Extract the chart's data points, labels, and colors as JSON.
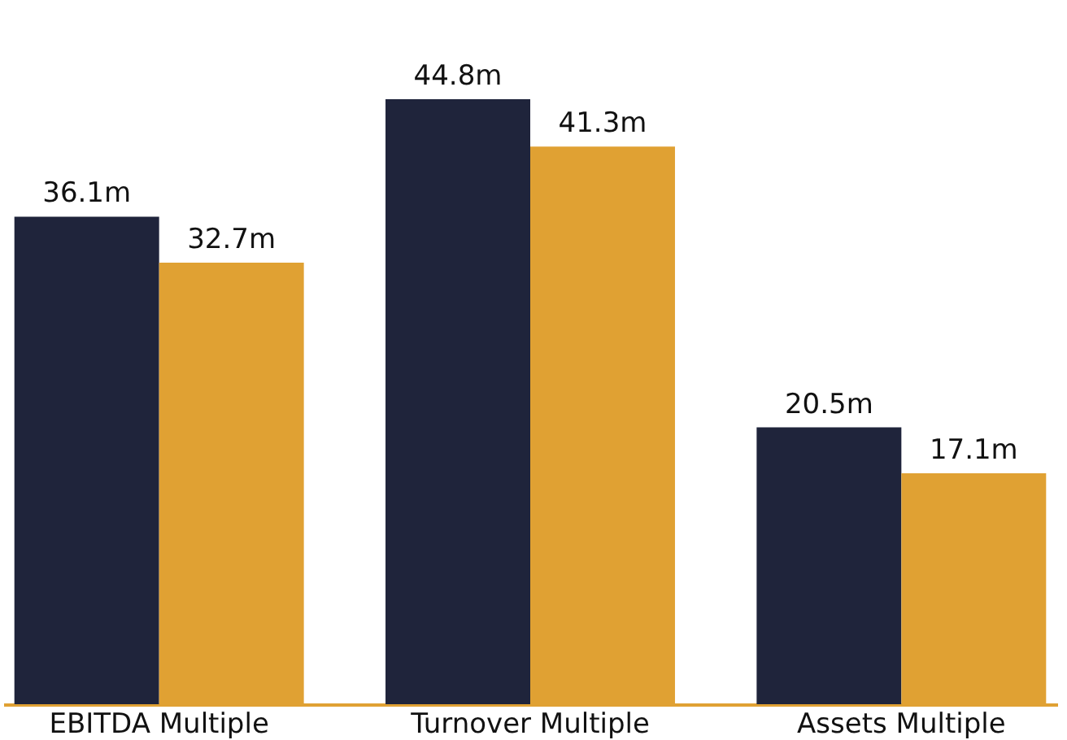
{
  "chart_data": {
    "type": "bar",
    "categories": [
      "EBITDA Multiple",
      "Turnover Multiple",
      "Assets Multiple"
    ],
    "series": [
      {
        "color": "#1f243b",
        "values": [
          36.1,
          44.8,
          20.5
        ],
        "value_labels": [
          "36.1m",
          "44.8m",
          "20.5m"
        ]
      },
      {
        "color": "#e0a133",
        "values": [
          32.7,
          41.3,
          17.1
        ],
        "value_labels": [
          "32.7m",
          "41.3m",
          "17.1m"
        ]
      }
    ],
    "grid": false,
    "legend": false
  }
}
